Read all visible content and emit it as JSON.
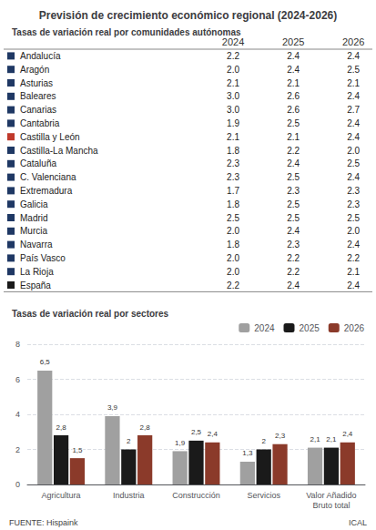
{
  "chart_data": [
    {
      "type": "table",
      "title": "Previsión de crecimiento económico regional (2024-2026)",
      "subtitle": "Tasas de variación real por comunidades autónomas",
      "categories": [
        "Andalucía",
        "Aragón",
        "Asturias",
        "Baleares",
        "Canarias",
        "Cantabria",
        "Castilla y León",
        "Castilla-La Mancha",
        "Cataluña",
        "C. Valenciana",
        "Extremadura",
        "Galicia",
        "Madrid",
        "Murcia",
        "Navarra",
        "País Vasco",
        "La Rioja",
        "España"
      ],
      "colors": [
        "#1f3864",
        "#1f3864",
        "#1f3864",
        "#1f3864",
        "#1f3864",
        "#1f3864",
        "#c0392b",
        "#1f3864",
        "#1f3864",
        "#1f3864",
        "#1f3864",
        "#1f3864",
        "#1f3864",
        "#1f3864",
        "#1f3864",
        "#1f3864",
        "#1f3864",
        "#1a1a1a"
      ],
      "series": [
        {
          "name": "2024",
          "values": [
            2.2,
            2.0,
            2.1,
            3.0,
            3.0,
            1.9,
            2.1,
            1.8,
            2.3,
            2.3,
            1.7,
            1.8,
            2.5,
            2.0,
            1.8,
            2.0,
            2.0,
            2.2
          ],
          "value_labels": [
            "2.2",
            "2.0",
            "2.1",
            "3.0",
            "3.0",
            "1.9",
            "2.1",
            "1.8",
            "2.3",
            "2.3",
            "1.7",
            "1.8",
            "2.5",
            "2.0",
            "1.8",
            "2.0",
            "2.0",
            "2.2"
          ]
        },
        {
          "name": "2025",
          "values": [
            2.4,
            2.4,
            2.1,
            2.6,
            2.6,
            2.5,
            2.1,
            2.2,
            2.4,
            2.5,
            2.3,
            2.5,
            2.5,
            2.4,
            2.3,
            2.2,
            2.2,
            2.4
          ],
          "value_labels": [
            "2.4",
            "2.4",
            "2.1",
            "2.6",
            "2.6",
            "2.5",
            "2.1",
            "2.2",
            "2.4",
            "2.5",
            "2.3",
            "2.5",
            "2.5",
            "2.4",
            "2.3",
            "2.2",
            "2.2",
            "2.4"
          ]
        },
        {
          "name": "2026",
          "values": [
            2.4,
            2.5,
            2.1,
            2.4,
            2.7,
            2.4,
            2.4,
            2.0,
            2.5,
            2.4,
            2.3,
            2.3,
            2.5,
            2.0,
            2.4,
            2.2,
            2.1,
            2.4
          ],
          "value_labels": [
            "2.4",
            "2.5",
            "2.1",
            "2.4",
            "2.7",
            "2.4",
            "2.4",
            "2.0",
            "2.5",
            "2.4",
            "2.3",
            "2.3",
            "2.5",
            "2.0",
            "2.4",
            "2.2",
            "2.1",
            "2.4"
          ]
        }
      ]
    },
    {
      "type": "bar",
      "title": "Tasas de variación real por sectores",
      "categories": [
        "Agricultura",
        "Industria",
        "Construcción",
        "Servicios",
        "Valor Añadido\nBruto total"
      ],
      "series": [
        {
          "name": "2024",
          "color": "#a0a0a0",
          "values": [
            6.5,
            3.9,
            1.9,
            1.3,
            2.1
          ],
          "value_labels": [
            "6,5",
            "3,9",
            "1,9",
            "1,3",
            "2,1"
          ]
        },
        {
          "name": "2025",
          "color": "#1a1a1a",
          "values": [
            2.8,
            2.0,
            2.5,
            2.0,
            2.1
          ],
          "value_labels": [
            "2,8",
            "2",
            "2,5",
            "2",
            "2,1"
          ]
        },
        {
          "name": "2026",
          "color": "#8b3a2a",
          "values": [
            1.5,
            2.8,
            2.4,
            2.3,
            2.4
          ],
          "value_labels": [
            "1,5",
            "2,8",
            "2,4",
            "2,3",
            "2,4"
          ]
        }
      ],
      "ylim": [
        0,
        8
      ],
      "yticks": [
        0,
        2,
        4,
        6,
        8
      ],
      "grid": true,
      "legend": "upper right",
      "data_labels": true,
      "annotations": [
        "FUENTE: Hispaink",
        "ICAL"
      ]
    }
  ]
}
